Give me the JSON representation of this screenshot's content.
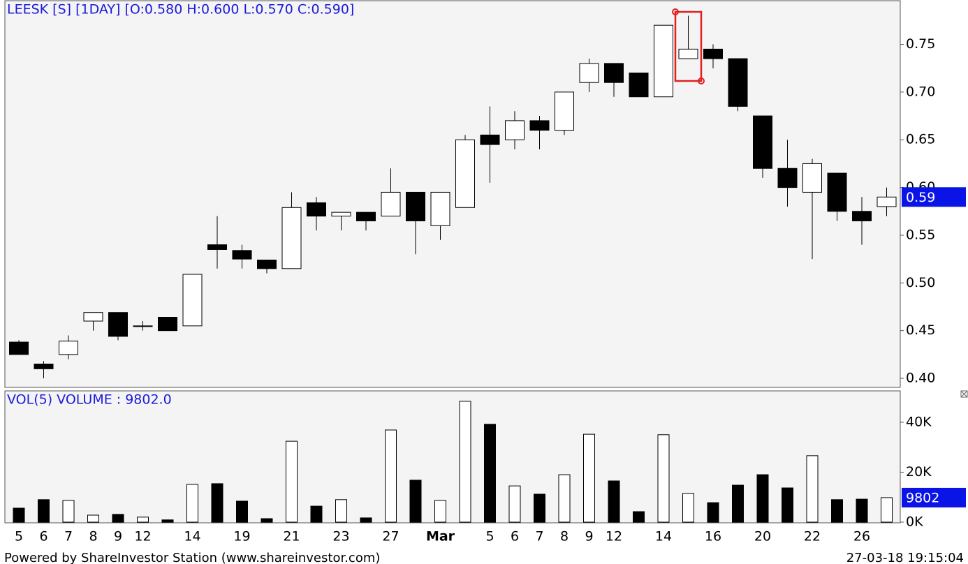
{
  "chart_data": [
    {
      "type": "candlestick",
      "title": "LEESK [S] [1DAY] [O:0.580 H:0.600 L:0.570 C:0.590]",
      "categories": [
        "5",
        "6",
        "7",
        "8",
        "9",
        "12",
        null,
        "14",
        null,
        "19",
        null,
        "21",
        null,
        "23",
        null,
        "27",
        null,
        "Mar",
        null,
        "5",
        "6",
        "7",
        "8",
        "9",
        "12",
        null,
        "14",
        null,
        "16",
        null,
        "20",
        null,
        "22",
        null,
        "26",
        null
      ],
      "open": [
        0.438,
        0.415,
        0.425,
        0.46,
        0.469,
        0.455,
        0.464,
        0.455,
        0.54,
        0.534,
        0.524,
        0.515,
        0.584,
        0.57,
        0.574,
        0.57,
        0.595,
        0.56,
        0.579,
        0.655,
        0.65,
        0.67,
        0.66,
        0.71,
        0.73,
        0.72,
        0.695,
        0.735,
        0.745,
        0.735,
        0.675,
        0.62,
        0.595,
        0.615,
        0.575,
        0.58
      ],
      "high": [
        0.44,
        0.418,
        0.445,
        0.469,
        0.469,
        0.46,
        0.464,
        0.509,
        0.57,
        0.54,
        0.524,
        0.595,
        0.59,
        0.574,
        0.574,
        0.62,
        0.595,
        0.595,
        0.655,
        0.685,
        0.68,
        0.675,
        0.7,
        0.735,
        0.73,
        0.72,
        0.77,
        0.78,
        0.75,
        0.735,
        0.675,
        0.65,
        0.63,
        0.615,
        0.59,
        0.6
      ],
      "low": [
        0.425,
        0.4,
        0.42,
        0.45,
        0.44,
        0.45,
        0.45,
        0.455,
        0.515,
        0.515,
        0.51,
        0.515,
        0.555,
        0.555,
        0.555,
        0.57,
        0.53,
        0.545,
        0.579,
        0.605,
        0.64,
        0.64,
        0.655,
        0.7,
        0.695,
        0.695,
        0.695,
        0.735,
        0.725,
        0.68,
        0.61,
        0.58,
        0.525,
        0.565,
        0.54,
        0.57
      ],
      "close": [
        0.425,
        0.41,
        0.439,
        0.469,
        0.444,
        0.455,
        0.45,
        0.509,
        0.535,
        0.525,
        0.515,
        0.579,
        0.57,
        0.574,
        0.565,
        0.595,
        0.565,
        0.595,
        0.65,
        0.645,
        0.67,
        0.66,
        0.7,
        0.73,
        0.71,
        0.695,
        0.77,
        0.745,
        0.735,
        0.685,
        0.62,
        0.6,
        0.625,
        0.575,
        0.565,
        0.59
      ],
      "up_color": "#ffffff",
      "down_color": "#000000",
      "ylim": [
        0.39,
        0.795
      ],
      "yticks": [
        {
          "value": 0.4,
          "label": "0.40"
        },
        0.45,
        {
          "value": 0.5,
          "label": "0.50"
        },
        0.55,
        {
          "value": 0.6,
          "label": "0.60"
        },
        0.65,
        {
          "value": 0.7,
          "label": "0.70"
        },
        0.75
      ],
      "current_marker": {
        "value": 0.59,
        "label": "0.59"
      }
    },
    {
      "type": "volume",
      "title": "VOL(5)  VOLUME : 9802.0",
      "values": [
        5600,
        9000,
        8700,
        2800,
        3100,
        2000,
        900,
        15100,
        15400,
        8400,
        1400,
        32400,
        6400,
        9000,
        1700,
        36900,
        16800,
        8700,
        48400,
        39200,
        14500,
        11200,
        19000,
        35200,
        16500,
        4200,
        35000,
        11500,
        7800,
        14800,
        19000,
        13700,
        26600,
        9000,
        9200,
        9802
      ],
      "ylim": [
        0,
        52000
      ],
      "yticks": [
        {
          "value": 0,
          "label": "0K"
        },
        {
          "value": 20000,
          "label": "20K"
        },
        {
          "value": 40000,
          "label": "40K"
        }
      ],
      "current_marker": 9802
    }
  ],
  "footer": {
    "left": "Powered by ShareInvestor Station (www.shareinvestor.com)",
    "right": "27-03-18 19:15:04"
  }
}
